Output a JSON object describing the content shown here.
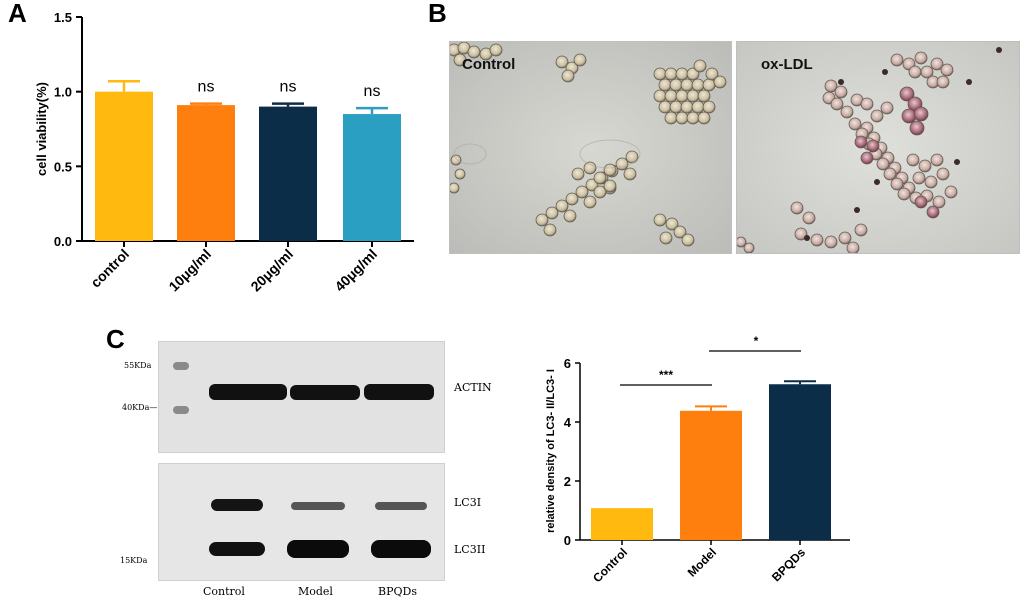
{
  "panels": {
    "a": "A",
    "b": "B",
    "c": "C"
  },
  "chart_data": [
    {
      "type": "bar",
      "panel": "A",
      "categories": [
        "control",
        "10μg/ml",
        "20μg/ml",
        "40μg/ml"
      ],
      "values": [
        1.0,
        0.91,
        0.9,
        0.85
      ],
      "errors": [
        0.07,
        0.01,
        0.02,
        0.04
      ],
      "colors": [
        "#FFB90F",
        "#FF7F0E",
        "#0C2D48",
        "#2A9FC2"
      ],
      "annotations": [
        "",
        "ns",
        "ns",
        "ns"
      ],
      "ylabel": "cell viability(%)",
      "ylim": [
        0,
        1.5
      ],
      "yticks": [
        "0.0",
        "0.5",
        "1.0",
        "1.5"
      ],
      "grid": false
    },
    {
      "type": "bar",
      "panel": "C",
      "categories": [
        "Control",
        "Model",
        "BPQDs"
      ],
      "values": [
        1.08,
        4.38,
        5.28
      ],
      "errors": [
        0.0,
        0.15,
        0.1
      ],
      "colors": [
        "#FFB90F",
        "#FF7F0E",
        "#0C2D48"
      ],
      "ylabel": "relative density of LC3- II/LC3- I",
      "ylim": [
        0,
        6
      ],
      "yticks": [
        "0",
        "2",
        "4",
        "6"
      ],
      "significance": [
        {
          "from": "Control",
          "to": "Model",
          "label": "***"
        },
        {
          "from": "Model",
          "to": "BPQDs",
          "label": "*"
        }
      ],
      "grid": false
    }
  ],
  "microscopy": {
    "left_label": "Control",
    "right_label": "ox-LDL"
  },
  "western_blot": {
    "top_markers": [
      "55KDa",
      "40KDa—"
    ],
    "top_band_label": "ACTIN",
    "bottom_marker": "15KDa",
    "bottom_band_labels": [
      "LC3I",
      "LC3II"
    ],
    "lanes": [
      "Control",
      "Model",
      "BPQDs"
    ]
  }
}
